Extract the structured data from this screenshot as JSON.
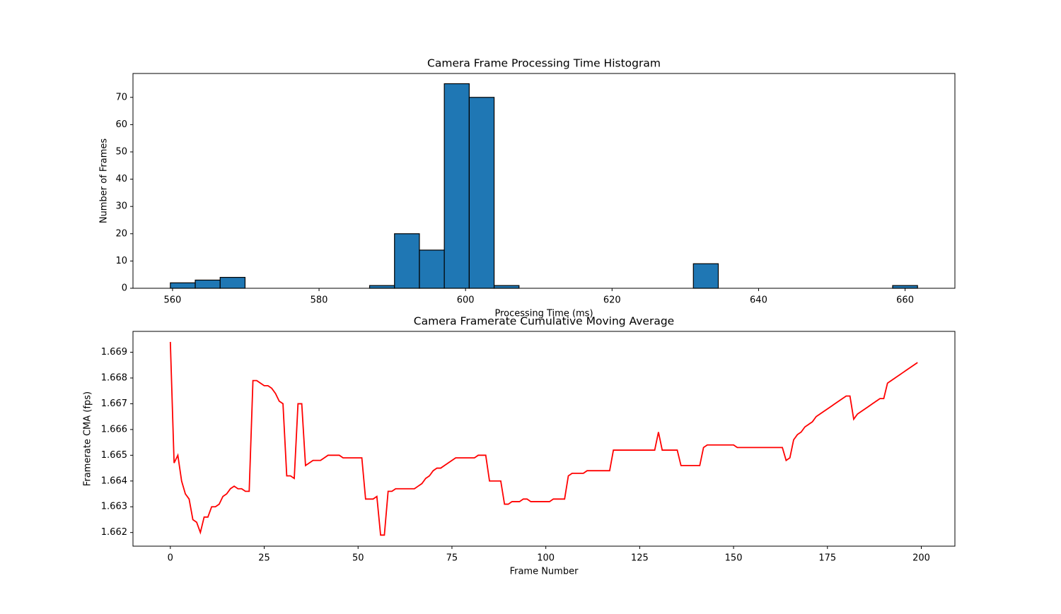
{
  "chart_data": [
    {
      "type": "histogram",
      "title": "Camera Frame Processing Time Histogram",
      "x_label": "Processing Time (ms)",
      "y_label": "Number of Frames",
      "bins": [
        559.7,
        563.1,
        566.5,
        569.9,
        573.3,
        576.7,
        580.1,
        583.5,
        586.9,
        590.3,
        593.7,
        597.1,
        600.5,
        603.9,
        607.3,
        610.7,
        614.1,
        617.5,
        620.9,
        624.3,
        627.7,
        631.1,
        634.5,
        637.9,
        641.3,
        644.7,
        648.1,
        651.5,
        654.9,
        658.3,
        661.7
      ],
      "values": [
        2,
        3,
        4,
        0,
        0,
        0,
        0,
        0,
        1,
        20,
        14,
        75,
        70,
        1,
        0,
        0,
        0,
        0,
        0,
        0,
        0,
        9,
        0,
        0,
        0,
        0,
        0,
        0,
        0,
        1
      ],
      "color": "#1f77b4",
      "edge_color": "#000000",
      "xlim": [
        554.6,
        666.8
      ],
      "xticks": [
        560,
        580,
        600,
        620,
        640,
        660
      ],
      "ylim": [
        0,
        78.75
      ],
      "yticks": [
        0,
        10,
        20,
        30,
        40,
        50,
        60,
        70
      ]
    },
    {
      "type": "line",
      "title": "Camera Framerate Cumulative Moving Average",
      "x_label": "Frame Number",
      "y_label": "Framerate CMA (fps)",
      "x": [
        0,
        1,
        2,
        3,
        4,
        5,
        6,
        7,
        8,
        9,
        10,
        11,
        12,
        13,
        14,
        15,
        16,
        17,
        18,
        19,
        20,
        21,
        22,
        23,
        24,
        25,
        26,
        27,
        28,
        29,
        30,
        31,
        32,
        33,
        34,
        35,
        36,
        37,
        38,
        39,
        40,
        41,
        42,
        43,
        44,
        45,
        46,
        47,
        48,
        49,
        50,
        51,
        52,
        53,
        54,
        55,
        56,
        57,
        58,
        59,
        60,
        61,
        62,
        63,
        64,
        65,
        66,
        67,
        68,
        69,
        70,
        71,
        72,
        73,
        74,
        75,
        76,
        77,
        78,
        79,
        80,
        81,
        82,
        83,
        84,
        85,
        86,
        87,
        88,
        89,
        90,
        91,
        92,
        93,
        94,
        95,
        96,
        97,
        98,
        99,
        100,
        101,
        102,
        103,
        104,
        105,
        106,
        107,
        108,
        109,
        110,
        111,
        112,
        113,
        114,
        115,
        116,
        117,
        118,
        119,
        120,
        121,
        122,
        123,
        124,
        125,
        126,
        127,
        128,
        129,
        130,
        131,
        132,
        133,
        134,
        135,
        136,
        137,
        138,
        139,
        140,
        141,
        142,
        143,
        144,
        145,
        146,
        147,
        148,
        149,
        150,
        151,
        152,
        153,
        154,
        155,
        156,
        157,
        158,
        159,
        160,
        161,
        162,
        163,
        164,
        165,
        166,
        167,
        168,
        169,
        170,
        171,
        172,
        173,
        174,
        175,
        176,
        177,
        178,
        179,
        180,
        181,
        182,
        183,
        184,
        185,
        186,
        187,
        188,
        189,
        190,
        191,
        192,
        193,
        194,
        195,
        196,
        197,
        198,
        199
      ],
      "values": [
        1.6694,
        1.6647,
        1.665,
        1.664,
        1.6635,
        1.6633,
        1.6625,
        1.6624,
        1.662,
        1.6626,
        1.6626,
        1.663,
        1.663,
        1.6631,
        1.6634,
        1.6635,
        1.6637,
        1.6638,
        1.6637,
        1.6637,
        1.6636,
        1.6636,
        1.6679,
        1.6679,
        1.6678,
        1.6677,
        1.6677,
        1.6676,
        1.6674,
        1.6671,
        1.667,
        1.6642,
        1.6642,
        1.6641,
        1.667,
        1.667,
        1.6646,
        1.6647,
        1.6648,
        1.6648,
        1.6648,
        1.6649,
        1.665,
        1.665,
        1.665,
        1.665,
        1.6649,
        1.6649,
        1.6649,
        1.6649,
        1.6649,
        1.6649,
        1.6633,
        1.6633,
        1.6633,
        1.6634,
        1.6619,
        1.6619,
        1.6636,
        1.6636,
        1.6637,
        1.6637,
        1.6637,
        1.6637,
        1.6637,
        1.6637,
        1.6638,
        1.6639,
        1.6641,
        1.6642,
        1.6644,
        1.6645,
        1.6645,
        1.6646,
        1.6647,
        1.6648,
        1.6649,
        1.6649,
        1.6649,
        1.6649,
        1.6649,
        1.6649,
        1.665,
        1.665,
        1.665,
        1.664,
        1.664,
        1.664,
        1.664,
        1.6631,
        1.6631,
        1.6632,
        1.6632,
        1.6632,
        1.6633,
        1.6633,
        1.6632,
        1.6632,
        1.6632,
        1.6632,
        1.6632,
        1.6632,
        1.6633,
        1.6633,
        1.6633,
        1.6633,
        1.6642,
        1.6643,
        1.6643,
        1.6643,
        1.6643,
        1.6644,
        1.6644,
        1.6644,
        1.6644,
        1.6644,
        1.6644,
        1.6644,
        1.6652,
        1.6652,
        1.6652,
        1.6652,
        1.6652,
        1.6652,
        1.6652,
        1.6652,
        1.6652,
        1.6652,
        1.6652,
        1.6652,
        1.6659,
        1.6652,
        1.6652,
        1.6652,
        1.6652,
        1.6652,
        1.6646,
        1.6646,
        1.6646,
        1.6646,
        1.6646,
        1.6646,
        1.6653,
        1.6654,
        1.6654,
        1.6654,
        1.6654,
        1.6654,
        1.6654,
        1.6654,
        1.6654,
        1.6653,
        1.6653,
        1.6653,
        1.6653,
        1.6653,
        1.6653,
        1.6653,
        1.6653,
        1.6653,
        1.6653,
        1.6653,
        1.6653,
        1.6653,
        1.6648,
        1.6649,
        1.6656,
        1.6658,
        1.6659,
        1.6661,
        1.6662,
        1.6663,
        1.6665,
        1.6666,
        1.6667,
        1.6668,
        1.6669,
        1.667,
        1.6671,
        1.6672,
        1.6673,
        1.6673,
        1.6664,
        1.6666,
        1.6667,
        1.6668,
        1.6669,
        1.667,
        1.6671,
        1.6672,
        1.6672,
        1.6678,
        1.6679,
        1.668,
        1.6681,
        1.6682,
        1.6683,
        1.6684,
        1.6685,
        1.6686
      ],
      "color": "#ff0000",
      "xlim": [
        -9.95,
        208.95
      ],
      "xticks": [
        0,
        25,
        50,
        75,
        100,
        125,
        150,
        175,
        200
      ],
      "ylim": [
        1.66147,
        1.66981
      ],
      "yticks": [
        1.662,
        1.663,
        1.664,
        1.665,
        1.666,
        1.667,
        1.668,
        1.669
      ]
    }
  ]
}
